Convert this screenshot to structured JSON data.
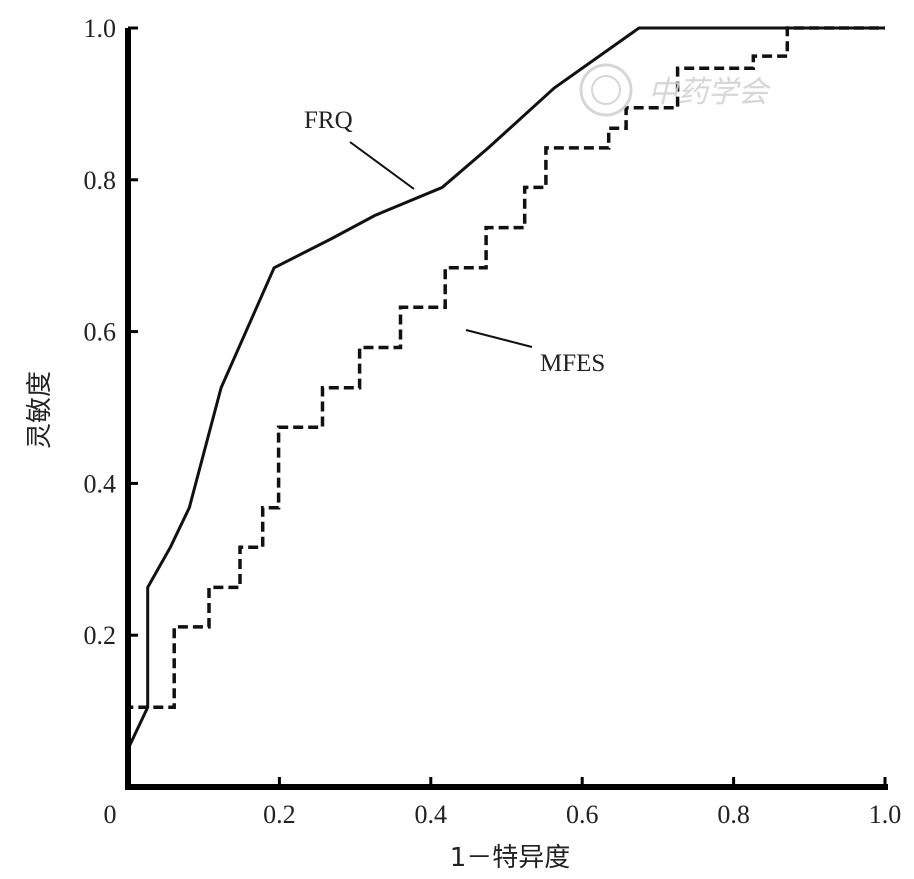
{
  "chart_data": {
    "type": "line",
    "xlabel": "1－特异度",
    "ylabel": "灵敏度",
    "xlim": [
      0,
      1.0
    ],
    "ylim": [
      0,
      1.0
    ],
    "x_ticks": [
      "0",
      "0.2",
      "0.4",
      "0.6",
      "0.8",
      "1.0"
    ],
    "x_tick_values": [
      0,
      0.2,
      0.4,
      0.6,
      0.8,
      1.0
    ],
    "y_ticks": [
      "0.2",
      "0.4",
      "0.6",
      "0.8",
      "1.0"
    ],
    "y_tick_values": [
      0.2,
      0.4,
      0.6,
      0.8,
      1.0
    ],
    "grid": false,
    "legend": "none",
    "series": [
      {
        "name": "FRQ",
        "style": "solid",
        "color": "#111111",
        "x": [
          0.0,
          0.0,
          0.026,
          0.026,
          0.056,
          0.081,
          0.123,
          0.193,
          0.268,
          0.326,
          0.415,
          0.476,
          0.563,
          0.675,
          1.0
        ],
        "y": [
          0.0,
          0.05,
          0.105,
          0.263,
          0.316,
          0.368,
          0.526,
          0.684,
          0.722,
          0.753,
          0.79,
          0.842,
          0.921,
          1.0,
          1.0
        ]
      },
      {
        "name": "MFES",
        "style": "dashed",
        "color": "#111111",
        "x": [
          0.0,
          0.0,
          0.046,
          0.061,
          0.061,
          0.107,
          0.107,
          0.148,
          0.148,
          0.178,
          0.178,
          0.199,
          0.199,
          0.257,
          0.257,
          0.306,
          0.306,
          0.36,
          0.36,
          0.419,
          0.419,
          0.473,
          0.473,
          0.524,
          0.524,
          0.552,
          0.552,
          0.635,
          0.635,
          0.658,
          0.658,
          0.726,
          0.726,
          0.767,
          0.767,
          0.826,
          0.826,
          0.871,
          0.871,
          1.0
        ],
        "y": [
          0.0,
          0.105,
          0.105,
          0.105,
          0.211,
          0.211,
          0.263,
          0.263,
          0.316,
          0.316,
          0.368,
          0.368,
          0.474,
          0.474,
          0.526,
          0.526,
          0.579,
          0.579,
          0.632,
          0.632,
          0.684,
          0.684,
          0.737,
          0.737,
          0.79,
          0.79,
          0.842,
          0.842,
          0.868,
          0.868,
          0.895,
          0.895,
          0.947,
          0.947,
          0.947,
          0.947,
          0.963,
          0.963,
          1.0,
          1.0
        ]
      }
    ]
  },
  "watermark": {
    "text": "中药学会",
    "color": "#d2d2d2"
  }
}
